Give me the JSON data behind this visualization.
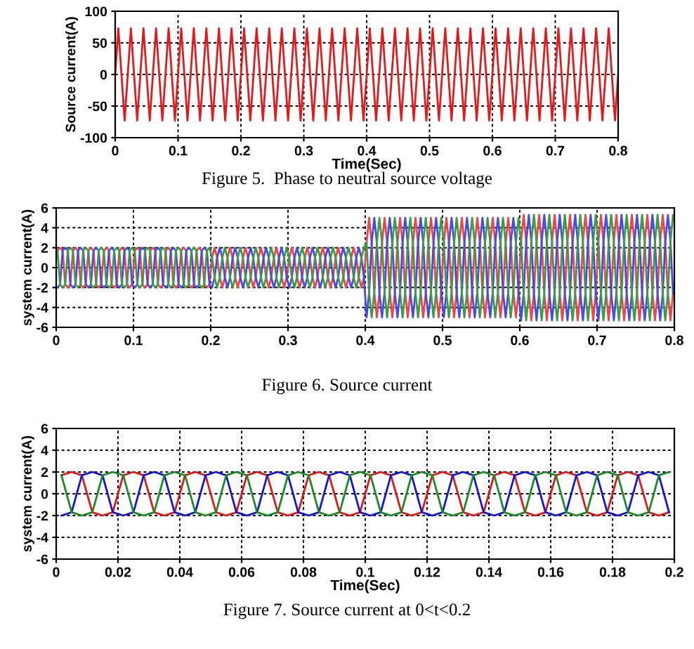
{
  "chart_data": [
    {
      "type": "line",
      "xlabel": "Time(Sec)",
      "ylabel": "Source current(A)",
      "annotations": [
        "Figure 5.  Phase to neutral source voltage"
      ],
      "xlim": [
        0,
        0.8
      ],
      "ylim": [
        -100,
        100
      ],
      "xticks": [
        0,
        0.1,
        0.2,
        0.3,
        0.4,
        0.5,
        0.6,
        0.7,
        0.8
      ],
      "yticks": [
        -100,
        -50,
        0,
        50,
        100
      ],
      "grid": true,
      "x": [
        0,
        0.005,
        0.01,
        0.015,
        0.02,
        0.025,
        0.03,
        0.035,
        0.04,
        0.045,
        0.05,
        0.055,
        0.06,
        0.065,
        0.07,
        0.075,
        0.08,
        0.085,
        0.09,
        0.095,
        0.1,
        0.105,
        0.11,
        0.115,
        0.12,
        0.125,
        0.13,
        0.135,
        0.14,
        0.145,
        0.15,
        0.155,
        0.16,
        0.165,
        0.17,
        0.175,
        0.18,
        0.185,
        0.19,
        0.195,
        0.2,
        0.205,
        0.21,
        0.215,
        0.22,
        0.225,
        0.23,
        0.235,
        0.24,
        0.245,
        0.25,
        0.255,
        0.26,
        0.265,
        0.27,
        0.275,
        0.28,
        0.285,
        0.29,
        0.295,
        0.3,
        0.305,
        0.31,
        0.315,
        0.32,
        0.325,
        0.33,
        0.335,
        0.34,
        0.345,
        0.35,
        0.355,
        0.36,
        0.365,
        0.37,
        0.375,
        0.38,
        0.385,
        0.39,
        0.395,
        0.4,
        0.405,
        0.41,
        0.415,
        0.42,
        0.425,
        0.43,
        0.435,
        0.44,
        0.445,
        0.45,
        0.455,
        0.46,
        0.465,
        0.47,
        0.475,
        0.48,
        0.485,
        0.49,
        0.495,
        0.5,
        0.505,
        0.51,
        0.515,
        0.52,
        0.525,
        0.53,
        0.535,
        0.54,
        0.545,
        0.55,
        0.555,
        0.56,
        0.565,
        0.57,
        0.575,
        0.58,
        0.585,
        0.59,
        0.595,
        0.6,
        0.605,
        0.61,
        0.615,
        0.62,
        0.625,
        0.63,
        0.635,
        0.64,
        0.645,
        0.65,
        0.655,
        0.66,
        0.665,
        0.67,
        0.675,
        0.68,
        0.685,
        0.69,
        0.695,
        0.7,
        0.705,
        0.71,
        0.715,
        0.72,
        0.725,
        0.73,
        0.735,
        0.74,
        0.745,
        0.75,
        0.755,
        0.76,
        0.765,
        0.77,
        0.775,
        0.78,
        0.785,
        0.79,
        0.795,
        0.8
      ],
      "series": [
        {
          "color": "#e3191e",
          "values": [
            0,
            73,
            0,
            -73,
            0,
            73,
            0,
            -73,
            0,
            73,
            0,
            -73,
            0,
            73,
            0,
            -73,
            0,
            73,
            0,
            -73,
            0,
            73,
            0,
            -73,
            0,
            73,
            0,
            -73,
            0,
            73,
            0,
            -73,
            0,
            73,
            0,
            -73,
            0,
            73,
            0,
            -73,
            0,
            73,
            0,
            -73,
            0,
            73,
            0,
            -73,
            0,
            73,
            0,
            -73,
            0,
            73,
            0,
            -73,
            0,
            73,
            0,
            -73,
            0,
            73,
            0,
            -73,
            0,
            73,
            0,
            -73,
            0,
            73,
            0,
            -73,
            0,
            73,
            0,
            -73,
            0,
            73,
            0,
            -73,
            0,
            73,
            0,
            -73,
            0,
            73,
            0,
            -73,
            0,
            73,
            0,
            -73,
            0,
            73,
            0,
            -73,
            0,
            73,
            0,
            -73,
            0,
            73,
            0,
            -73,
            0,
            73,
            0,
            -73,
            0,
            73,
            0,
            -73,
            0,
            73,
            0,
            -73,
            0,
            73,
            0,
            -73,
            0,
            73,
            0,
            -73,
            0,
            73,
            0,
            -73,
            0,
            73,
            0,
            -73,
            0,
            73,
            0,
            -73,
            0,
            73,
            0,
            -73,
            0,
            73,
            0,
            -73,
            0,
            73,
            0,
            -73,
            0,
            73,
            0,
            -73,
            0,
            73,
            0,
            -73,
            0,
            73,
            0,
            -73,
            0
          ]
        }
      ]
    },
    {
      "type": "line",
      "ylabel": "system current(A)",
      "annotations": [
        "Figure 6. Source current"
      ],
      "xlim": [
        0,
        0.8
      ],
      "ylim": [
        -6,
        6
      ],
      "xticks": [
        0,
        0.1,
        0.2,
        0.3,
        0.4,
        0.5,
        0.6,
        0.7,
        0.8
      ],
      "yticks": [
        -6,
        -4,
        -2,
        0,
        2,
        4,
        6
      ],
      "grid": true,
      "x": [
        0.0017,
        0.005,
        0.0083,
        0.0117,
        0.015,
        0.0183,
        0.0217,
        0.025,
        0.0283,
        0.0317,
        0.035,
        0.0383,
        0.0417,
        0.045,
        0.0483,
        0.0517,
        0.055,
        0.0583,
        0.0617,
        0.065,
        0.0683,
        0.0717,
        0.075,
        0.0783,
        0.0817,
        0.085,
        0.0883,
        0.0917,
        0.095,
        0.0983,
        0.1017,
        0.105,
        0.1083,
        0.1117,
        0.115,
        0.1183,
        0.1217,
        0.125,
        0.1283,
        0.1317,
        0.135,
        0.1383,
        0.1417,
        0.145,
        0.1483,
        0.1517,
        0.155,
        0.1583,
        0.1617,
        0.165,
        0.1683,
        0.1717,
        0.175,
        0.1783,
        0.1817,
        0.185,
        0.1883,
        0.1917,
        0.195,
        0.1983,
        0.2017,
        0.205,
        0.2083,
        0.2117,
        0.215,
        0.2183,
        0.2217,
        0.225,
        0.2283,
        0.2317,
        0.235,
        0.2383,
        0.2417,
        0.245,
        0.2483,
        0.2517,
        0.255,
        0.2583,
        0.2617,
        0.265,
        0.2683,
        0.2717,
        0.275,
        0.2783,
        0.2817,
        0.285,
        0.2883,
        0.2917,
        0.295,
        0.2983,
        0.3017,
        0.305,
        0.3083,
        0.3117,
        0.315,
        0.3183,
        0.3217,
        0.325,
        0.3283,
        0.3317,
        0.335,
        0.3383,
        0.3417,
        0.345,
        0.3483,
        0.3517,
        0.355,
        0.3583,
        0.3617,
        0.365,
        0.3683,
        0.3717,
        0.375,
        0.3783,
        0.3817,
        0.385,
        0.3883,
        0.3917,
        0.395,
        0.3983,
        0.4017,
        0.405,
        0.4083,
        0.4117,
        0.415,
        0.4183,
        0.4217,
        0.425,
        0.4283,
        0.4317,
        0.435,
        0.4383,
        0.4417,
        0.445,
        0.4483,
        0.4517,
        0.455,
        0.4583,
        0.4617,
        0.465,
        0.4683,
        0.4717,
        0.475,
        0.4783,
        0.4817,
        0.485,
        0.4883,
        0.4917,
        0.495,
        0.4983,
        0.5017,
        0.505,
        0.5083,
        0.5117,
        0.515,
        0.5183,
        0.5217,
        0.525,
        0.5283,
        0.5317,
        0.535,
        0.5383,
        0.5417,
        0.545,
        0.5483,
        0.5517,
        0.555,
        0.5583,
        0.5617,
        0.565,
        0.5683,
        0.5717,
        0.575,
        0.5783,
        0.5817,
        0.585,
        0.5883,
        0.5917,
        0.595,
        0.5983,
        0.6017,
        0.605,
        0.6083,
        0.6117,
        0.615,
        0.6183,
        0.6217,
        0.625,
        0.6283,
        0.6317,
        0.635,
        0.6383,
        0.6417,
        0.645,
        0.6483,
        0.6517,
        0.655,
        0.6583,
        0.6617,
        0.665,
        0.6683,
        0.6717,
        0.675,
        0.6783,
        0.6817,
        0.685,
        0.6883,
        0.6917,
        0.695,
        0.6983,
        0.7017,
        0.705,
        0.7083,
        0.7117,
        0.715,
        0.7183,
        0.7217,
        0.725,
        0.7283,
        0.7317,
        0.735,
        0.7383,
        0.7417,
        0.745,
        0.7483,
        0.7517,
        0.755,
        0.7583,
        0.7617,
        0.765,
        0.7683,
        0.7717,
        0.775,
        0.7783,
        0.7817,
        0.785,
        0.7883,
        0.7917,
        0.795,
        0.7983
      ],
      "series": [
        {
          "color": "#e8484c",
          "values": [
            1.7,
            2,
            1.7,
            -1.7,
            -2,
            -1.7,
            1.7,
            2,
            1.7,
            -1.7,
            -2,
            -1.7,
            1.7,
            2,
            1.7,
            -1.7,
            -2,
            -1.7,
            1.7,
            2,
            1.7,
            -1.7,
            -2,
            -1.7,
            1.7,
            2,
            1.7,
            -1.7,
            -2,
            -1.7,
            1.7,
            2,
            1.7,
            -1.7,
            -2,
            -1.7,
            1.7,
            2,
            1.7,
            -1.7,
            -2,
            -1.7,
            1.7,
            2,
            1.7,
            -1.7,
            -2,
            -1.7,
            1.7,
            2,
            1.7,
            -1.7,
            -2,
            -1.7,
            1.7,
            2,
            1.7,
            -1.7,
            -2,
            -1.7,
            1,
            2,
            1,
            -1,
            -2,
            -1,
            1,
            2,
            1,
            -1,
            -2,
            -1,
            1,
            2,
            1,
            -1,
            -2,
            -1,
            1,
            2,
            1,
            -1,
            -2,
            -1,
            1,
            2,
            1,
            -1,
            -2,
            -1,
            1,
            2,
            1,
            -1,
            -2,
            -1,
            1,
            2,
            1,
            -1,
            -2,
            -1,
            1,
            2,
            1,
            -1,
            -2,
            -1,
            1,
            2,
            1,
            -1,
            -2,
            -1,
            1,
            2,
            1,
            -1,
            -2,
            -1,
            2.5,
            5,
            2.5,
            -2.5,
            -5,
            -2.5,
            2.5,
            5,
            2.5,
            -2.5,
            -5,
            -2.5,
            2.5,
            5,
            2.5,
            -2.5,
            -5,
            -2.5,
            2.5,
            5,
            2.5,
            -2.5,
            -5,
            -2.5,
            2.5,
            5,
            2.5,
            -2.5,
            -5,
            -2.5,
            2.5,
            5,
            2.5,
            -2.5,
            -5,
            -2.5,
            2.5,
            5,
            2.5,
            -2.5,
            -5,
            -2.5,
            2.5,
            5,
            2.5,
            -2.5,
            -5,
            -2.5,
            2.5,
            5,
            2.5,
            -2.5,
            -5,
            -2.5,
            2.5,
            5,
            2.5,
            -2.5,
            -5,
            -2.5,
            2.6,
            5.3,
            2.6,
            -2.6,
            -5.3,
            -2.6,
            2.6,
            5.3,
            2.6,
            -2.6,
            -5.3,
            -2.6,
            2.6,
            5.3,
            2.6,
            -2.6,
            -5.3,
            -2.6,
            2.6,
            5.3,
            2.6,
            -2.6,
            -5.3,
            -2.6,
            2.6,
            5.3,
            2.6,
            -2.6,
            -5.3,
            -2.6,
            2.6,
            5.3,
            2.6,
            -2.6,
            -5.3,
            -2.6,
            2.6,
            5.3,
            2.6,
            -2.6,
            -5.3,
            -2.6,
            2.6,
            5.3,
            2.6,
            -2.6,
            -5.3,
            -2.6,
            2.6,
            5.3,
            2.6,
            -2.6,
            -5.3,
            -2.6,
            2.6,
            5.3,
            2.6,
            -2.6,
            -5.3,
            -2.6
          ]
        },
        {
          "color": "#4a4ae0",
          "values": [
            -2,
            -1.7,
            1.7,
            2,
            1.7,
            -1.7,
            -2,
            -1.7,
            1.7,
            2,
            1.7,
            -1.7,
            -2,
            -1.7,
            1.7,
            2,
            1.7,
            -1.7,
            -2,
            -1.7,
            1.7,
            2,
            1.7,
            -1.7,
            -2,
            -1.7,
            1.7,
            2,
            1.7,
            -1.7,
            -2,
            -1.7,
            1.7,
            2,
            1.7,
            -1.7,
            -2,
            -1.7,
            1.7,
            2,
            1.7,
            -1.7,
            -2,
            -1.7,
            1.7,
            2,
            1.7,
            -1.7,
            -2,
            -1.7,
            1.7,
            2,
            1.7,
            -1.7,
            -2,
            -1.7,
            1.7,
            2,
            1.7,
            -1.7,
            -2,
            -1,
            1,
            2,
            1,
            -1,
            -2,
            -1,
            1,
            2,
            1,
            -1,
            -2,
            -1,
            1,
            2,
            1,
            -1,
            -2,
            -1,
            1,
            2,
            1,
            -1,
            -2,
            -1,
            1,
            2,
            1,
            -1,
            -2,
            -1,
            1,
            2,
            1,
            -1,
            -2,
            -1,
            1,
            2,
            1,
            -1,
            -2,
            -1,
            1,
            2,
            1,
            -1,
            -2,
            -1,
            1,
            2,
            1,
            -1,
            -2,
            -1,
            1,
            2,
            1,
            -1,
            -5,
            -2.5,
            2.5,
            5,
            2.5,
            -2.5,
            -5,
            -2.5,
            2.5,
            5,
            2.5,
            -2.5,
            -5,
            -2.5,
            2.5,
            5,
            2.5,
            -2.5,
            -5,
            -2.5,
            2.5,
            5,
            2.5,
            -2.5,
            -5,
            -2.5,
            2.5,
            5,
            2.5,
            -2.5,
            -5,
            -2.5,
            2.5,
            5,
            2.5,
            -2.5,
            -5,
            -2.5,
            2.5,
            5,
            2.5,
            -2.5,
            -5,
            -2.5,
            2.5,
            5,
            2.5,
            -2.5,
            -5,
            -2.5,
            2.5,
            5,
            2.5,
            -2.5,
            -5,
            -2.5,
            2.5,
            5,
            2.5,
            -2.5,
            -5.3,
            -2.6,
            2.6,
            5.3,
            2.6,
            -2.6,
            -5.3,
            -2.6,
            2.6,
            5.3,
            2.6,
            -2.6,
            -5.3,
            -2.6,
            2.6,
            5.3,
            2.6,
            -2.6,
            -5.3,
            -2.6,
            2.6,
            5.3,
            2.6,
            -2.6,
            -5.3,
            -2.6,
            2.6,
            5.3,
            2.6,
            -2.6,
            -5.3,
            -2.6,
            2.6,
            5.3,
            2.6,
            -2.6,
            -5.3,
            -2.6,
            2.6,
            5.3,
            2.6,
            -2.6,
            -5.3,
            -2.6,
            2.6,
            5.3,
            2.6,
            -2.6,
            -5.3,
            -2.6,
            2.6,
            5.3,
            2.6,
            -2.6,
            -5.3,
            -2.6,
            2.6,
            5.3,
            2.6,
            -2.6
          ]
        },
        {
          "color": "#3c9a4a",
          "values": [
            1.7,
            -1.7,
            -2,
            -1.7,
            1.7,
            2,
            1.7,
            -1.7,
            -2,
            -1.7,
            1.7,
            2,
            1.7,
            -1.7,
            -2,
            -1.7,
            1.7,
            2,
            1.7,
            -1.7,
            -2,
            -1.7,
            1.7,
            2,
            1.7,
            -1.7,
            -2,
            -1.7,
            1.7,
            2,
            1.7,
            -1.7,
            -2,
            -1.7,
            1.7,
            2,
            1.7,
            -1.7,
            -2,
            -1.7,
            1.7,
            2,
            1.7,
            -1.7,
            -2,
            -1.7,
            1.7,
            2,
            1.7,
            -1.7,
            -2,
            -1.7,
            1.7,
            2,
            1.7,
            -1.7,
            -2,
            -1.7,
            1.7,
            2,
            1,
            -1,
            -2,
            -1,
            1,
            2,
            1,
            -1,
            -2,
            -1,
            1,
            2,
            1,
            -1,
            -2,
            -1,
            1,
            2,
            1,
            -1,
            -2,
            -1,
            1,
            2,
            1,
            -1,
            -2,
            -1,
            1,
            2,
            1,
            -1,
            -2,
            -1,
            1,
            2,
            1,
            -1,
            -2,
            -1,
            1,
            2,
            1,
            -1,
            -2,
            -1,
            1,
            2,
            1,
            -1,
            -2,
            -1,
            1,
            2,
            1,
            -1,
            -2,
            -1,
            1,
            2,
            2.5,
            -2.5,
            -5,
            -2.5,
            2.5,
            5,
            2.5,
            -2.5,
            -5,
            -2.5,
            2.5,
            5,
            2.5,
            -2.5,
            -5,
            -2.5,
            2.5,
            5,
            2.5,
            -2.5,
            -5,
            -2.5,
            2.5,
            5,
            2.5,
            -2.5,
            -5,
            -2.5,
            2.5,
            5,
            2.5,
            -2.5,
            -5,
            -2.5,
            2.5,
            5,
            2.5,
            -2.5,
            -5,
            -2.5,
            2.5,
            5,
            2.5,
            -2.5,
            -5,
            -2.5,
            2.5,
            5,
            2.5,
            -2.5,
            -5,
            -2.5,
            2.5,
            5,
            2.5,
            -2.5,
            -5,
            -2.5,
            2.5,
            5,
            2.6,
            -2.6,
            -5.3,
            -2.6,
            2.6,
            5.3,
            2.6,
            -2.6,
            -5.3,
            -2.6,
            2.6,
            5.3,
            2.6,
            -2.6,
            -5.3,
            -2.6,
            2.6,
            5.3,
            2.6,
            -2.6,
            -5.3,
            -2.6,
            2.6,
            5.3,
            2.6,
            -2.6,
            -5.3,
            -2.6,
            2.6,
            5.3,
            2.6,
            -2.6,
            -5.3,
            -2.6,
            2.6,
            5.3,
            2.6,
            -2.6,
            -5.3,
            -2.6,
            2.6,
            5.3,
            2.6,
            -2.6,
            -5.3,
            -2.6,
            2.6,
            5.3,
            2.6,
            -2.6,
            -5.3,
            -2.6,
            2.6,
            5.3,
            2.6,
            -2.6,
            -5.3,
            -2.6,
            2.6,
            5.3
          ]
        }
      ]
    },
    {
      "type": "line",
      "xlabel": "Time(Sec)",
      "ylabel": "system current(A)",
      "annotations": [
        "Figure 7. Source current at 0<t<0.2"
      ],
      "xlim": [
        0,
        0.2
      ],
      "ylim": [
        -6,
        6
      ],
      "xticks": [
        0,
        0.02,
        0.04,
        0.06,
        0.08,
        0.1,
        0.12,
        0.14,
        0.16,
        0.18,
        0.2
      ],
      "yticks": [
        -6,
        -4,
        -2,
        0,
        2,
        4,
        6
      ],
      "grid": true,
      "x": [
        0.0017,
        0.005,
        0.0083,
        0.0117,
        0.015,
        0.0183,
        0.0217,
        0.025,
        0.0283,
        0.0317,
        0.035,
        0.0383,
        0.0417,
        0.045,
        0.0483,
        0.0517,
        0.055,
        0.0583,
        0.0617,
        0.065,
        0.0683,
        0.0717,
        0.075,
        0.0783,
        0.0817,
        0.085,
        0.0883,
        0.0917,
        0.095,
        0.0983,
        0.1017,
        0.105,
        0.1083,
        0.1117,
        0.115,
        0.1183,
        0.1217,
        0.125,
        0.1283,
        0.1317,
        0.135,
        0.1383,
        0.1417,
        0.145,
        0.1483,
        0.1517,
        0.155,
        0.1583,
        0.1617,
        0.165,
        0.1683,
        0.1717,
        0.175,
        0.1783,
        0.1817,
        0.185,
        0.1883,
        0.1917,
        0.195,
        0.1983
      ],
      "series": [
        {
          "color": "#e0161b",
          "values": [
            1.7,
            2,
            1.7,
            -1.7,
            -2,
            -1.7,
            1.7,
            2,
            1.7,
            -1.7,
            -2,
            -1.7,
            1.7,
            2,
            1.7,
            -1.7,
            -2,
            -1.7,
            1.7,
            2,
            1.7,
            -1.7,
            -2,
            -1.7,
            1.7,
            2,
            1.7,
            -1.7,
            -2,
            -1.7,
            1.7,
            2,
            1.7,
            -1.7,
            -2,
            -1.7,
            1.7,
            2,
            1.7,
            -1.7,
            -2,
            -1.7,
            1.7,
            2,
            1.7,
            -1.7,
            -2,
            -1.7,
            1.7,
            2,
            1.7,
            -1.7,
            -2,
            -1.7,
            1.7,
            2,
            1.7,
            -1.7,
            -2,
            -1.7
          ]
        },
        {
          "color": "#1414d2",
          "values": [
            -2,
            -1.7,
            1.7,
            2,
            1.7,
            -1.7,
            -2,
            -1.7,
            1.7,
            2,
            1.7,
            -1.7,
            -2,
            -1.7,
            1.7,
            2,
            1.7,
            -1.7,
            -2,
            -1.7,
            1.7,
            2,
            1.7,
            -1.7,
            -2,
            -1.7,
            1.7,
            2,
            1.7,
            -1.7,
            -2,
            -1.7,
            1.7,
            2,
            1.7,
            -1.7,
            -2,
            -1.7,
            1.7,
            2,
            1.7,
            -1.7,
            -2,
            -1.7,
            1.7,
            2,
            1.7,
            -1.7,
            -2,
            -1.7,
            1.7,
            2,
            1.7,
            -1.7,
            -2,
            -1.7,
            1.7,
            2,
            1.7,
            -1.7
          ]
        },
        {
          "color": "#1a8a24",
          "values": [
            1.7,
            -1.7,
            -2,
            -1.7,
            1.7,
            2,
            1.7,
            -1.7,
            -2,
            -1.7,
            1.7,
            2,
            1.7,
            -1.7,
            -2,
            -1.7,
            1.7,
            2,
            1.7,
            -1.7,
            -2,
            -1.7,
            1.7,
            2,
            1.7,
            -1.7,
            -2,
            -1.7,
            1.7,
            2,
            1.7,
            -1.7,
            -2,
            -1.7,
            1.7,
            2,
            1.7,
            -1.7,
            -2,
            -1.7,
            1.7,
            2,
            1.7,
            -1.7,
            -2,
            -1.7,
            1.7,
            2,
            1.7,
            -1.7,
            -2,
            -1.7,
            1.7,
            2,
            1.7,
            -1.7,
            -2,
            -1.7,
            1.7,
            2
          ]
        }
      ]
    }
  ]
}
